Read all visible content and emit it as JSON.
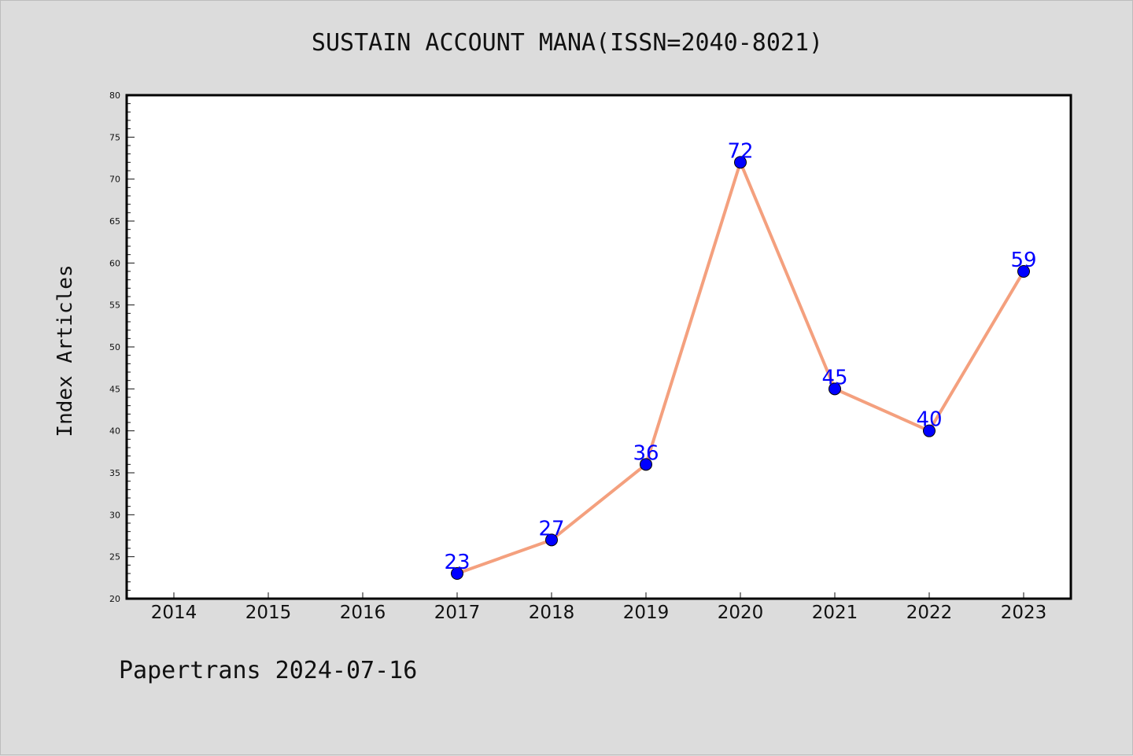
{
  "title": "SUSTAIN ACCOUNT MANA(ISSN=2040-8021)",
  "footer": "Papertrans 2024-07-16",
  "colors": {
    "background": "#dcdcdc",
    "plot_bg": "#ffffff",
    "line": "#f4a07e",
    "marker": "#0000ff",
    "label": "#0000ff"
  },
  "chart_data": {
    "type": "line",
    "title": "SUSTAIN ACCOUNT MANA(ISSN=2040-8021)",
    "xlabel": "",
    "ylabel": "Index Articles",
    "categories": [
      "2014",
      "2015",
      "2016",
      "2017",
      "2018",
      "2019",
      "2020",
      "2021",
      "2022",
      "2023"
    ],
    "x": [
      2017,
      2018,
      2019,
      2020,
      2021,
      2022,
      2023
    ],
    "series": [
      {
        "values": [
          23,
          27,
          36,
          72,
          45,
          40,
          59
        ],
        "labels": [
          "23",
          "27",
          "36",
          "72",
          "45",
          "40",
          "59"
        ]
      }
    ],
    "ylim": [
      20,
      80
    ],
    "xlim": [
      2013.5,
      2023.5
    ],
    "yticks": [
      20,
      25,
      30,
      35,
      40,
      45,
      50,
      55,
      60,
      65,
      70,
      75,
      80
    ],
    "grid": false,
    "legend": "none"
  }
}
